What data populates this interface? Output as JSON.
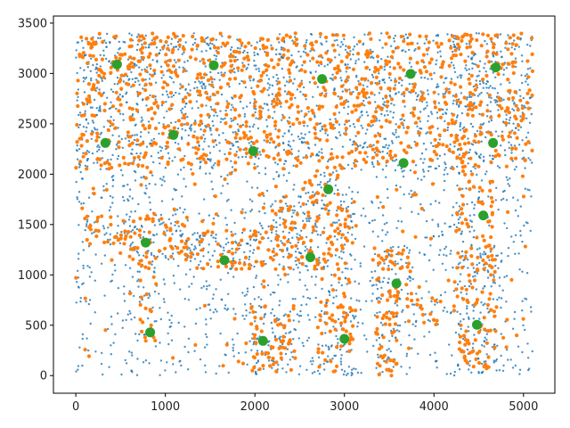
{
  "chart_data": {
    "type": "scatter",
    "title": "",
    "xlabel": "",
    "ylabel": "",
    "xlim": [
      -250,
      5350
    ],
    "ylim": [
      -175,
      3570
    ],
    "xticks": [
      0,
      1000,
      2000,
      3000,
      4000,
      5000
    ],
    "yticks": [
      0,
      500,
      1000,
      1500,
      2000,
      2500,
      3000,
      3500
    ],
    "grid": false,
    "legend": "none",
    "series": [
      {
        "role": "dense-small-points",
        "color": "#1f77b4",
        "marker": "dot",
        "extent": {
          "x": [
            0,
            5100
          ],
          "y": [
            0,
            3400
          ]
        }
      },
      {
        "role": "medium-points",
        "color": "#ff7f0e",
        "marker": "circle",
        "extent": {
          "x": [
            0,
            5100
          ],
          "y": [
            0,
            3400
          ]
        }
      },
      {
        "role": "large-points",
        "color": "#2ca02c",
        "marker": "circle",
        "points": [
          [
            460,
            3090
          ],
          [
            1540,
            3080
          ],
          [
            2750,
            2945
          ],
          [
            3740,
            2995
          ],
          [
            4690,
            3060
          ],
          [
            330,
            2310
          ],
          [
            1090,
            2390
          ],
          [
            1980,
            2230
          ],
          [
            3660,
            2110
          ],
          [
            4660,
            2310
          ],
          [
            2820,
            1850
          ],
          [
            4550,
            1590
          ],
          [
            780,
            1320
          ],
          [
            1660,
            1145
          ],
          [
            2620,
            1175
          ],
          [
            3580,
            915
          ],
          [
            830,
            430
          ],
          [
            2090,
            345
          ],
          [
            3000,
            365
          ],
          [
            4480,
            505
          ]
        ]
      }
    ]
  }
}
